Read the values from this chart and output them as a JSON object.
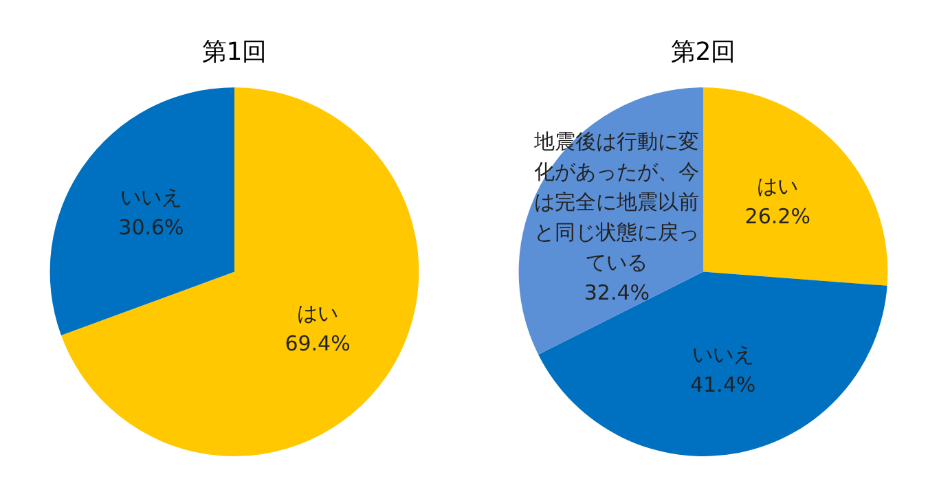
{
  "chart_data": [
    {
      "type": "pie",
      "title": "第1回",
      "categories": [
        "はい",
        "いいえ"
      ],
      "values": [
        69.4,
        30.6
      ],
      "colors": [
        "#ffc800",
        "#0070c0"
      ],
      "value_labels": [
        "69.4%",
        "30.6%"
      ],
      "legend": false
    },
    {
      "type": "pie",
      "title": "第2回",
      "categories": [
        "はい",
        "いいえ",
        "地震後は行動に変化があったが、今は完全に地震以前と同じ状態に戻っている"
      ],
      "values": [
        26.2,
        41.4,
        32.4
      ],
      "colors": [
        "#ffc800",
        "#0070c0",
        "#5b8fd6"
      ],
      "value_labels": [
        "26.2%",
        "41.4%",
        "32.4%"
      ],
      "legend": false
    }
  ]
}
